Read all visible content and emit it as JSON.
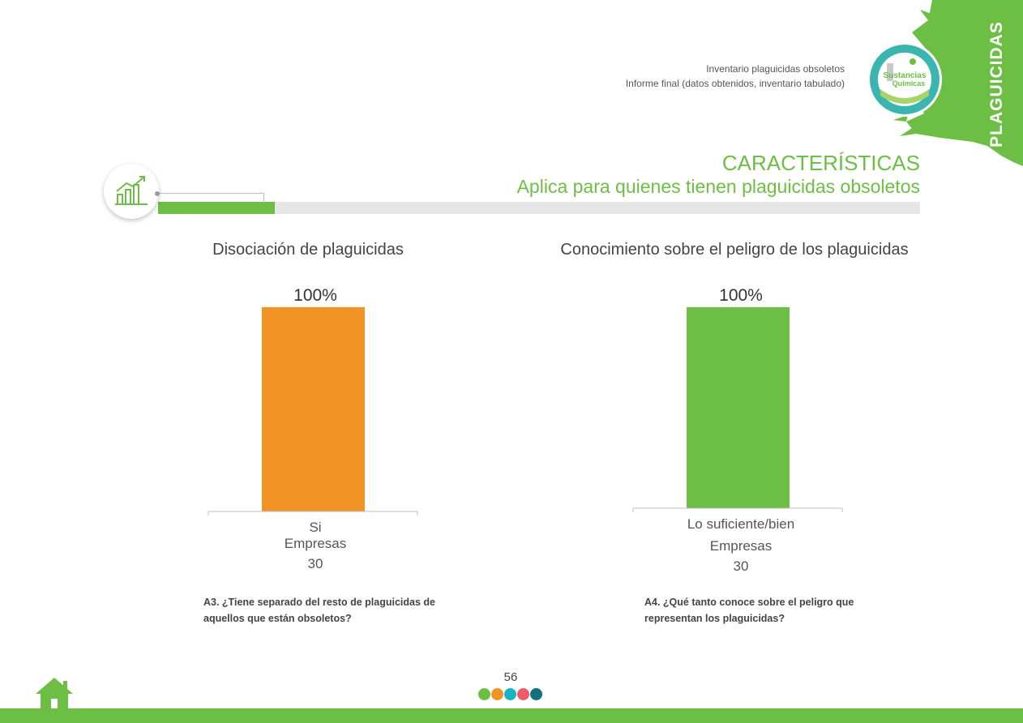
{
  "header": {
    "line1": "Inventario plaguicidas obsoletos",
    "line2": "Informe final (datos obtenidos, inventario tabulado)",
    "side_label": "PLAGUICIDAS",
    "logo_text": "Sustancias Químicas"
  },
  "section": {
    "title": "CARACTERÍSTICAS",
    "subtitle": "Aplica para quienes tienen plaguicidas obsoletos"
  },
  "chart_data": [
    {
      "type": "bar",
      "title": "Disociación de plaguicidas",
      "categories": [
        "Si"
      ],
      "values": [
        100
      ],
      "value_label": "100%",
      "color": "#f39325",
      "xlabel": "Empresas",
      "n_label": "30",
      "ylim": [
        0,
        100
      ],
      "question": "A3. ¿Tiene separado del resto de plaguicidas de aquellos que están obsoletos?"
    },
    {
      "type": "bar",
      "title": "Conocimiento sobre el peligro de los plaguicidas",
      "categories": [
        "Lo suficiente/bien"
      ],
      "values": [
        100
      ],
      "value_label": "100%",
      "color": "#6cbf44",
      "xlabel": "Empresas",
      "n_label": "30",
      "ylim": [
        0,
        100
      ],
      "question": "A4. ¿Qué tanto conoce sobre el peligro que representan los plaguicidas?"
    }
  ],
  "footer": {
    "page_number": "56",
    "dot_colors": [
      "#6cbf44",
      "#f39325",
      "#1ab3c4",
      "#ef5a67",
      "#15707e"
    ]
  },
  "colors": {
    "brand_green": "#6cbf44",
    "orange": "#f39325",
    "gray_bar": "#e6e6e6"
  }
}
